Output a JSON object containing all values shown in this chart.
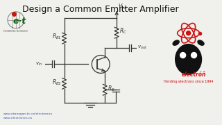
{
  "title": "Design a Common Emitter Amplifier",
  "title_fontsize": 9,
  "bg_color": "#f0f0ec",
  "circuit_color": "#333333",
  "text_color": "#111111",
  "red_color": "#cc1111",
  "link_color": "#3355aa",
  "logo_text": "electróñ",
  "logo_sub": "Herding electrons since 1994",
  "url1": "www.okanagan.bc.ca/electronics",
  "url2": "www.electronics.ca"
}
